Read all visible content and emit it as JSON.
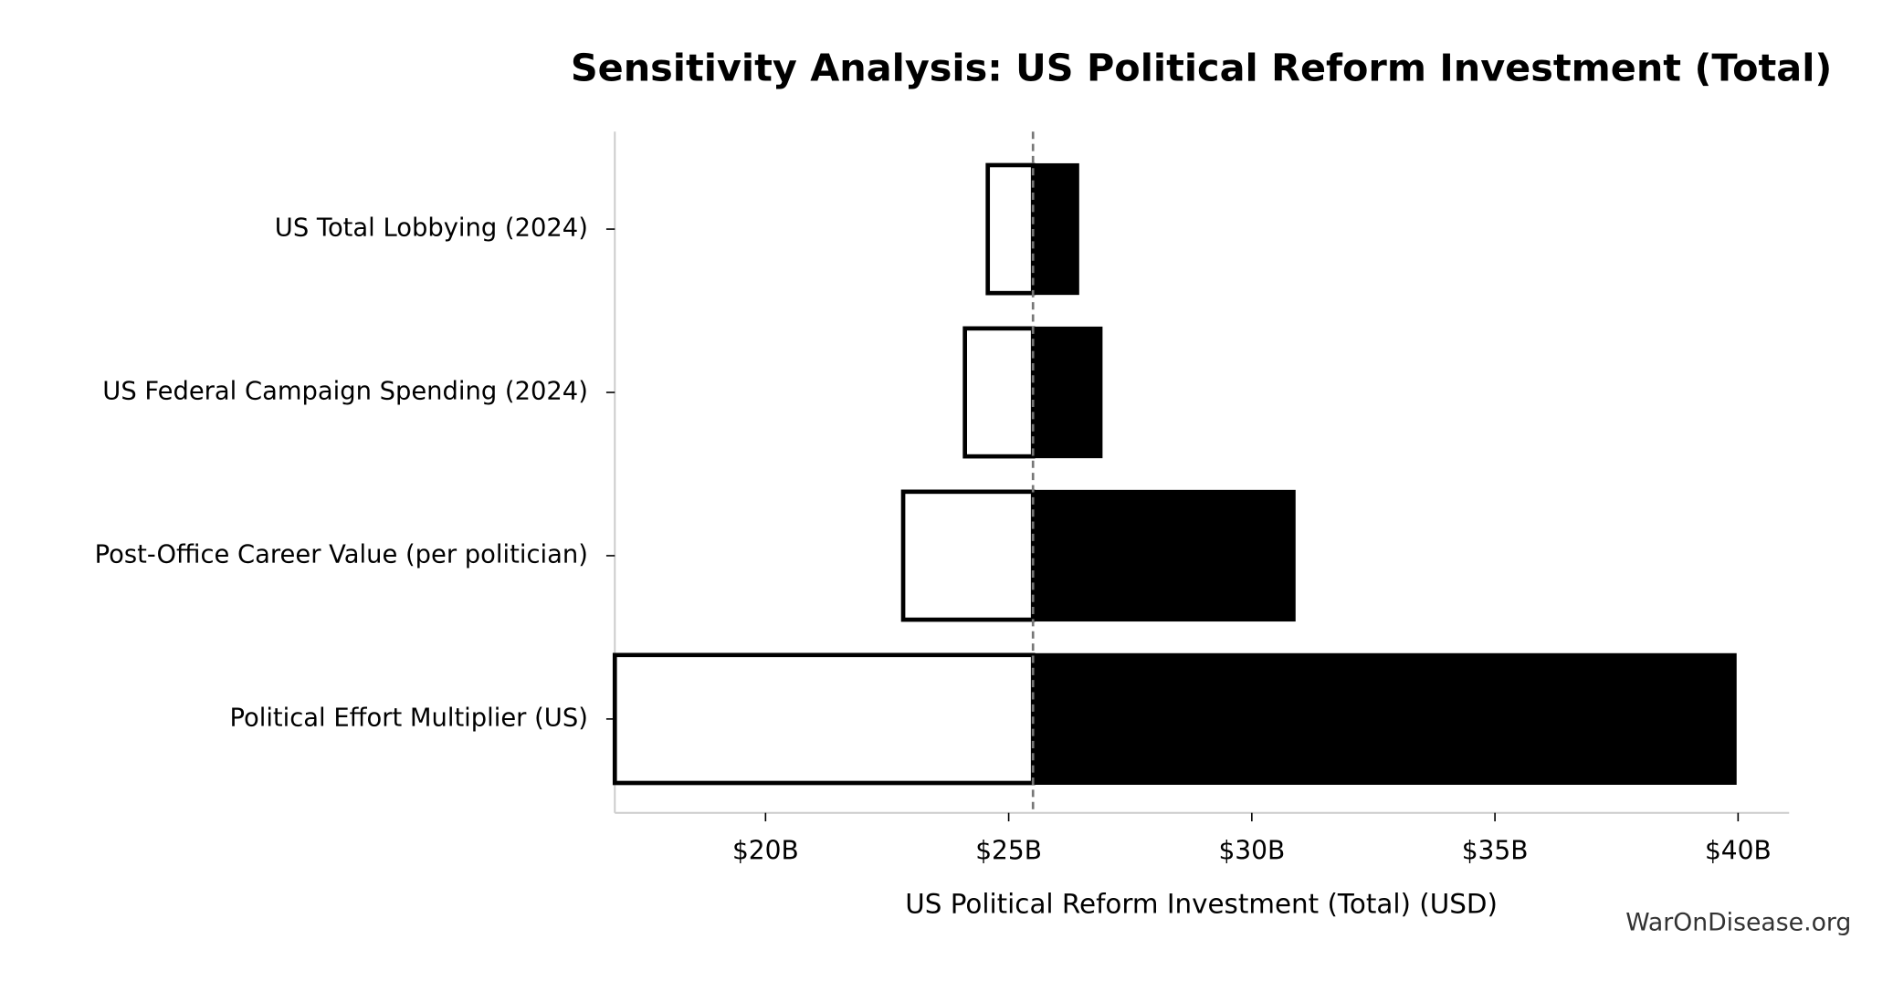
{
  "chart_data": {
    "type": "tornado",
    "title": "Sensitivity Analysis: US Political Reform Investment (Total)",
    "x_label": "US Political Reform Investment (Total) (USD)",
    "watermark": "WarOnDisease.org",
    "categories": [
      "US Total Lobbying (2024)",
      "US Federal Campaign Spending (2024)",
      "Post-Office Career Value (per politician)",
      "Political Effort Multiplier (US)"
    ],
    "low": [
      24.57,
      24.1,
      22.83,
      16.9
    ],
    "high": [
      26.45,
      26.93,
      30.9,
      39.97
    ],
    "low_color": "#ffffff",
    "high_color": "#000000",
    "reference_value": 25.5,
    "xlim": [
      16.9,
      41.05
    ],
    "xticks": [
      {
        "value": 20,
        "label": "$20B"
      },
      {
        "value": 25,
        "label": "$25B"
      },
      {
        "value": 30,
        "label": "$30B"
      },
      {
        "value": 35,
        "label": "$35B"
      },
      {
        "value": 40,
        "label": "$40B"
      }
    ]
  }
}
